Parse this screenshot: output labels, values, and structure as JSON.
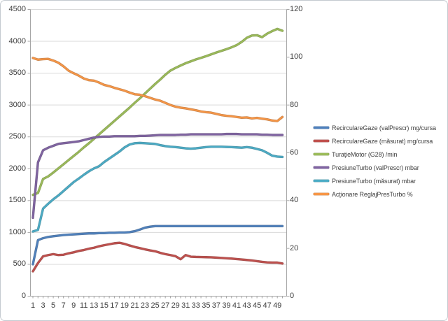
{
  "chart": {
    "title": "",
    "left_axis_tick_labels": [
      "0",
      "500",
      "1000",
      "1500",
      "2000",
      "2500",
      "3000",
      "3500",
      "4000",
      "4500"
    ],
    "right_axis_tick_labels": [
      "0",
      "20",
      "40",
      "60",
      "80",
      "100",
      "120"
    ],
    "x_axis_tick_labels": [
      "1",
      "3",
      "5",
      "7",
      "9",
      "11",
      "13",
      "15",
      "17",
      "19",
      "21",
      "23",
      "25",
      "27",
      "29",
      "31",
      "33",
      "35",
      "37",
      "39",
      "41",
      "43",
      "45",
      "47",
      "49"
    ],
    "gridline_color": "#d9d9d9",
    "axis_line_color": "#a6a6a6",
    "label_color": "#3f3f3f"
  },
  "chart_data": {
    "type": "line",
    "title": "",
    "xlabel": "",
    "ylabel_left": "",
    "ylabel_right": "",
    "grid": "horizontal",
    "legend_position": "right",
    "left_axis": {
      "min": 0,
      "max": 4500,
      "step": 500
    },
    "right_axis": {
      "min": 0,
      "max": 120,
      "step": 20
    },
    "x": [
      1,
      2,
      3,
      4,
      5,
      6,
      7,
      8,
      9,
      10,
      11,
      12,
      13,
      14,
      15,
      16,
      17,
      18,
      19,
      20,
      21,
      22,
      23,
      24,
      25,
      26,
      27,
      28,
      29,
      30,
      31,
      32,
      33,
      34,
      35,
      36,
      37,
      38,
      39,
      40,
      41,
      42,
      43,
      44,
      45,
      46,
      47,
      48,
      49,
      50
    ],
    "series": [
      {
        "name": "RecirculareGaze (valPrescr)  mg/cursa",
        "axis": "left",
        "color": "#4F81BD",
        "values": [
          500,
          880,
          910,
          930,
          940,
          950,
          960,
          965,
          970,
          975,
          980,
          985,
          985,
          990,
          990,
          995,
          995,
          1000,
          1000,
          1005,
          1020,
          1045,
          1075,
          1090,
          1100,
          1100,
          1100,
          1100,
          1100,
          1100,
          1100,
          1100,
          1100,
          1100,
          1100,
          1100,
          1100,
          1100,
          1100,
          1100,
          1100,
          1100,
          1100,
          1100,
          1100,
          1100,
          1100,
          1100,
          1100,
          1100
        ]
      },
      {
        "name": "RecirculareGaze (măsurat)  mg/cursa",
        "axis": "left",
        "color": "#C0504D",
        "values": [
          390,
          520,
          625,
          645,
          660,
          645,
          650,
          672,
          688,
          710,
          724,
          745,
          760,
          783,
          800,
          815,
          830,
          838,
          820,
          795,
          772,
          754,
          735,
          718,
          705,
          680,
          660,
          645,
          628,
          580,
          645,
          620,
          616,
          614,
          612,
          610,
          605,
          600,
          595,
          590,
          583,
          575,
          568,
          560,
          550,
          538,
          530,
          528,
          527,
          512
        ]
      },
      {
        "name": "TuraţieMotor (G28)  /min",
        "axis": "left",
        "color": "#9BBB59",
        "values": [
          1590,
          1620,
          1840,
          1880,
          1940,
          2005,
          2070,
          2135,
          2200,
          2265,
          2335,
          2400,
          2470,
          2540,
          2610,
          2680,
          2750,
          2820,
          2890,
          2960,
          3035,
          3105,
          3180,
          3255,
          3330,
          3400,
          3475,
          3540,
          3582,
          3620,
          3656,
          3685,
          3715,
          3740,
          3766,
          3795,
          3824,
          3850,
          3876,
          3905,
          3940,
          3990,
          4055,
          4090,
          4095,
          4065,
          4120,
          4160,
          4195,
          4165
        ]
      },
      {
        "name": "PresiuneTurbo (valPrescr)  mbar",
        "axis": "left",
        "color": "#8064A2",
        "values": [
          1230,
          2100,
          2290,
          2330,
          2360,
          2390,
          2400,
          2410,
          2420,
          2430,
          2450,
          2470,
          2490,
          2500,
          2505,
          2505,
          2510,
          2510,
          2510,
          2510,
          2510,
          2515,
          2515,
          2520,
          2525,
          2530,
          2530,
          2530,
          2530,
          2535,
          2535,
          2540,
          2540,
          2540,
          2540,
          2540,
          2540,
          2540,
          2545,
          2545,
          2545,
          2540,
          2540,
          2540,
          2540,
          2535,
          2535,
          2530,
          2530,
          2530
        ]
      },
      {
        "name": "PresiuneTurbo (măsurat)  mbar",
        "axis": "left",
        "color": "#4BACC6",
        "values": [
          1015,
          1040,
          1375,
          1450,
          1520,
          1580,
          1650,
          1720,
          1790,
          1845,
          1905,
          1960,
          2005,
          2040,
          2105,
          2160,
          2215,
          2270,
          2335,
          2380,
          2400,
          2405,
          2400,
          2395,
          2390,
          2370,
          2355,
          2345,
          2340,
          2330,
          2320,
          2315,
          2320,
          2330,
          2340,
          2345,
          2345,
          2345,
          2342,
          2340,
          2335,
          2330,
          2340,
          2330,
          2310,
          2290,
          2250,
          2205,
          2190,
          2185
        ]
      },
      {
        "name": "Acţionare ReglajPresTurbo  %",
        "axis": "right",
        "color": "#F79646",
        "values": [
          99.7,
          99.0,
          99.2,
          99.3,
          98.6,
          97.7,
          96.2,
          94.4,
          93.3,
          92.3,
          91.1,
          90.4,
          90.2,
          89.4,
          88.4,
          87.9,
          87.2,
          86.6,
          86.0,
          85.2,
          84.5,
          84.3,
          83.7,
          83.0,
          82.3,
          81.8,
          80.9,
          80.0,
          79.3,
          78.9,
          78.6,
          78.2,
          77.8,
          77.3,
          77.0,
          76.8,
          76.3,
          75.8,
          75.5,
          75.3,
          75.0,
          74.7,
          74.8,
          74.4,
          74.6,
          74.3,
          74.0,
          73.5,
          73.3,
          75.0
        ]
      }
    ]
  }
}
